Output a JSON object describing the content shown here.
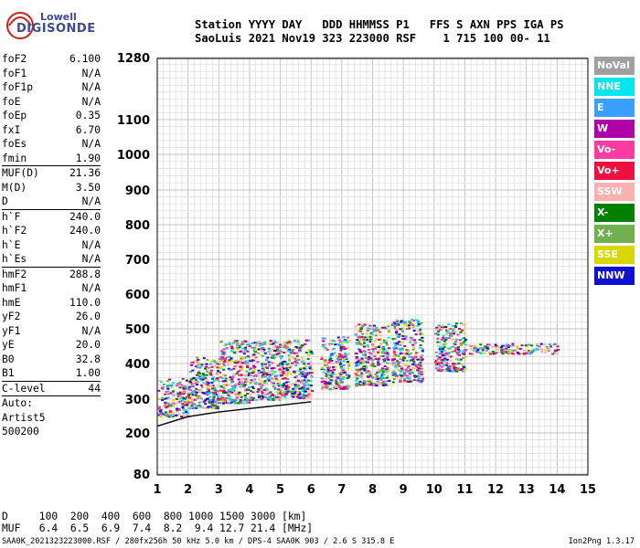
{
  "logo": {
    "line1": "Lowell",
    "line2": "DIGISONDE"
  },
  "header": {
    "line1": "Station YYYY DAY   DDD HHMMSS P1   FFS S AXN PPS IGA PS",
    "line2": "SaoLuis 2021 Nov19 323 223000 RSF    1 715 100 00- 11"
  },
  "params": [
    {
      "label": "foF2",
      "value": "6.100",
      "sep": false
    },
    {
      "label": "foF1",
      "value": "N/A",
      "sep": false
    },
    {
      "label": "foF1p",
      "value": "N/A",
      "sep": false
    },
    {
      "label": "foE",
      "value": "N/A",
      "sep": false
    },
    {
      "label": "foEp",
      "value": "0.35",
      "sep": false
    },
    {
      "label": "fxI",
      "value": "6.70",
      "sep": false
    },
    {
      "label": "foEs",
      "value": "N/A",
      "sep": false
    },
    {
      "label": "fmin",
      "value": "1.90",
      "sep": false
    },
    {
      "label": "MUF(D)",
      "value": "21.36",
      "sep": true
    },
    {
      "label": "M(D)",
      "value": "3.50",
      "sep": false
    },
    {
      "label": "D",
      "value": "N/A",
      "sep": false
    },
    {
      "label": "h`F",
      "value": "240.0",
      "sep": true
    },
    {
      "label": "h`F2",
      "value": "240.0",
      "sep": false
    },
    {
      "label": "h`E",
      "value": "N/A",
      "sep": false
    },
    {
      "label": "h`Es",
      "value": "N/A",
      "sep": false
    },
    {
      "label": "hmF2",
      "value": "288.8",
      "sep": true
    },
    {
      "label": "hmF1",
      "value": "N/A",
      "sep": false
    },
    {
      "label": "hmE",
      "value": "110.0",
      "sep": false
    },
    {
      "label": "yF2",
      "value": "26.0",
      "sep": false
    },
    {
      "label": "yF1",
      "value": "N/A",
      "sep": false
    },
    {
      "label": "yE",
      "value": "20.0",
      "sep": false
    },
    {
      "label": "B0",
      "value": "32.8",
      "sep": false
    },
    {
      "label": "B1",
      "value": "1.00",
      "sep": false
    },
    {
      "label": "C-level",
      "value": "44",
      "sep": true
    }
  ],
  "auto": {
    "line1": "Auto:",
    "line2": "Artist5",
    "line3": "500200"
  },
  "footer": {
    "d_line": "D     100  200  400  600  800 1000 1500 3000 [km]",
    "muf_line": "MUF   6.4  6.5  6.9  7.4  8.2  9.4 12.7 21.4 [MHz]",
    "file_line": "SAA0K_2021323223000.RSF / 280fx256h 50 kHz 5.0 km / DPS-4 SAA0K 903 / 2.6 S 315.8 E",
    "version": "Ion2Png 1.3.17"
  },
  "legend": [
    {
      "label": "NoVal",
      "color": "#a0a0a0"
    },
    {
      "label": "NNE",
      "color": "#00e5ee"
    },
    {
      "label": "E",
      "color": "#3aa0ff"
    },
    {
      "label": "W",
      "color": "#b000a8"
    },
    {
      "label": "Vo-",
      "color": "#ff3aa0"
    },
    {
      "label": "Vo+",
      "color": "#ee1040"
    },
    {
      "label": "SSW",
      "color": "#ffb0b0"
    },
    {
      "label": "X-",
      "color": "#008000"
    },
    {
      "label": "X+",
      "color": "#70b050"
    },
    {
      "label": "SSE",
      "color": "#d8d800"
    },
    {
      "label": "NNW",
      "color": "#1010d0"
    }
  ],
  "chart_data": {
    "type": "scatter",
    "xlim": [
      1,
      15
    ],
    "x_ticks": [
      1,
      2,
      3,
      4,
      5,
      6,
      7,
      8,
      9,
      10,
      11,
      12,
      13,
      14,
      15
    ],
    "y_ticks": [
      80,
      200,
      300,
      400,
      500,
      600,
      700,
      800,
      900,
      1000,
      1100,
      1280
    ],
    "ylim": [
      80,
      1280
    ],
    "y_scale": "nonlinear",
    "grid": true,
    "echo_clusters": [
      {
        "x_range": [
          1.0,
          2.0
        ],
        "h_range": [
          250,
          360
        ]
      },
      {
        "x_range": [
          2.0,
          3.0
        ],
        "h_range": [
          275,
          420
        ]
      },
      {
        "x_range": [
          3.0,
          4.0
        ],
        "h_range": [
          290,
          470
        ]
      },
      {
        "x_range": [
          4.0,
          5.0
        ],
        "h_range": [
          300,
          470
        ]
      },
      {
        "x_range": [
          5.0,
          6.0
        ],
        "h_range": [
          305,
          470
        ]
      },
      {
        "x_range": [
          6.3,
          7.2
        ],
        "h_range": [
          330,
          480
        ]
      },
      {
        "x_range": [
          7.4,
          8.5
        ],
        "h_range": [
          340,
          520
        ]
      },
      {
        "x_range": [
          8.6,
          9.6
        ],
        "h_range": [
          350,
          530
        ]
      },
      {
        "x_range": [
          10.0,
          11.0
        ],
        "h_range": [
          380,
          520
        ]
      },
      {
        "x_range": [
          11.1,
          14.0
        ],
        "h_range": [
          430,
          460
        ]
      }
    ],
    "trace_curve": {
      "x": [
        1.0,
        2.0,
        3.0,
        4.0,
        5.0,
        6.0
      ],
      "y": [
        220,
        248,
        262,
        272,
        282,
        292
      ]
    }
  }
}
